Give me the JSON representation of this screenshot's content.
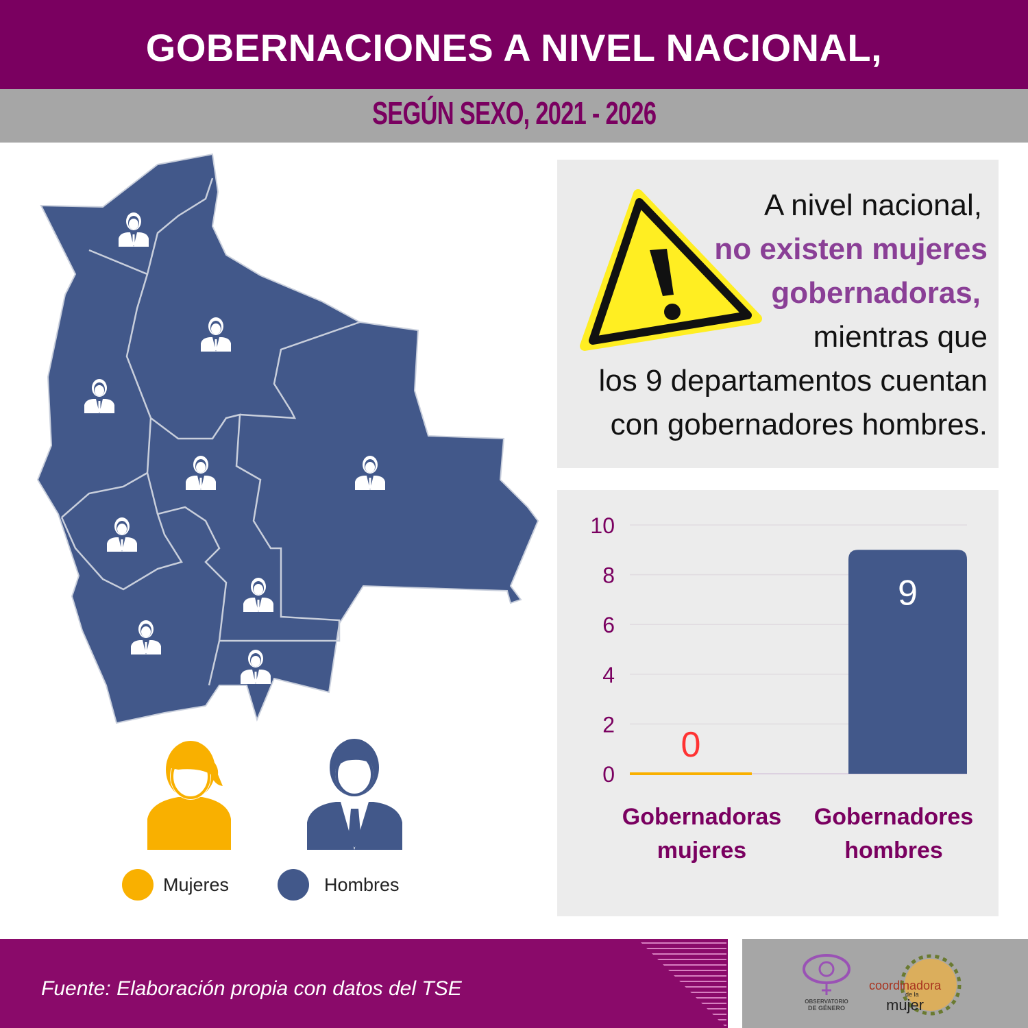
{
  "header": {
    "title": "GOBERNACIONES A NIVEL NACIONAL,",
    "subtitle": "SEGÚN SEXO, 2021 - 2026"
  },
  "legend": {
    "women": "Mujeres",
    "men": "Hombres",
    "women_color": "#f9b000",
    "men_color": "#42588a"
  },
  "note": {
    "line1": "A nivel nacional,",
    "line2": "no existen mujeres",
    "line3": "gobernadoras,",
    "line4": "mientras que",
    "line5": "los 9 departamentos cuentan",
    "line6": "con gobernadores hombres.",
    "icon": "warning-icon"
  },
  "chart_data": {
    "type": "bar",
    "categories": [
      "Gobernadoras mujeres",
      "Gobernadores hombres"
    ],
    "category_lines": [
      [
        "Gobernadoras",
        "mujeres"
      ],
      [
        "Gobernadores",
        "hombres"
      ]
    ],
    "values": [
      0,
      9
    ],
    "data_labels": [
      "0",
      "9"
    ],
    "colors": [
      "#f9b000",
      "#42588a"
    ],
    "label_colors": [
      "#ff3333",
      "#ffffff"
    ],
    "ylim": [
      0,
      10
    ],
    "yticks": [
      0,
      2,
      4,
      6,
      8,
      10
    ],
    "grid": true,
    "title": "",
    "xlabel": "",
    "ylabel": ""
  },
  "footer": {
    "source": "Fuente: Elaboración propia con datos del TSE",
    "logo1": "OBSERVATORIO DE GÉNERO COORDINADORA DE LA MUJER",
    "logo2": "coordinadora de la mujer"
  },
  "map": {
    "departments_count": 9,
    "icon": "man-governor-icon"
  }
}
